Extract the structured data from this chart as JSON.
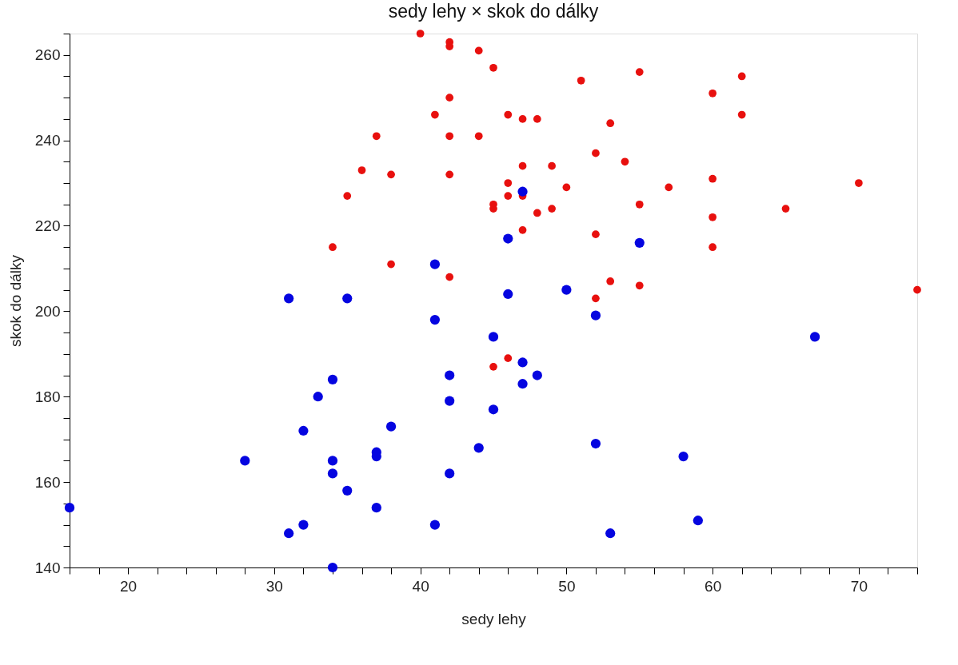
{
  "chart_data": {
    "type": "scatter",
    "title": "sedy lehy × skok do dálky",
    "xlabel": "sedy lehy",
    "ylabel": "skok do dálky",
    "xlim": [
      16,
      74
    ],
    "ylim": [
      140,
      265
    ],
    "xticks": [
      {
        "value": 16,
        "label": null
      },
      {
        "value": 18,
        "label": null
      },
      20,
      {
        "value": 22,
        "label": null
      },
      {
        "value": 24,
        "label": null
      },
      {
        "value": 26,
        "label": null
      },
      {
        "value": 28,
        "label": null
      },
      30,
      {
        "value": 32,
        "label": null
      },
      {
        "value": 34,
        "label": null
      },
      {
        "value": 36,
        "label": null
      },
      {
        "value": 38,
        "label": null
      },
      40,
      {
        "value": 42,
        "label": null
      },
      {
        "value": 44,
        "label": null
      },
      {
        "value": 46,
        "label": null
      },
      {
        "value": 48,
        "label": null
      },
      50,
      {
        "value": 52,
        "label": null
      },
      {
        "value": 54,
        "label": null
      },
      {
        "value": 56,
        "label": null
      },
      {
        "value": 58,
        "label": null
      },
      60,
      {
        "value": 62,
        "label": null
      },
      {
        "value": 64,
        "label": null
      },
      {
        "value": 66,
        "label": null
      },
      {
        "value": 68,
        "label": null
      },
      70,
      {
        "value": 72,
        "label": null
      },
      {
        "value": 74,
        "label": null
      }
    ],
    "yticks": [
      140,
      {
        "value": 145,
        "label": null
      },
      {
        "value": 150,
        "label": null
      },
      {
        "value": 155,
        "label": null
      },
      160,
      {
        "value": 165,
        "label": null
      },
      {
        "value": 170,
        "label": null
      },
      {
        "value": 175,
        "label": null
      },
      180,
      {
        "value": 185,
        "label": null
      },
      {
        "value": 190,
        "label": null
      },
      {
        "value": 195,
        "label": null
      },
      200,
      {
        "value": 205,
        "label": null
      },
      {
        "value": 210,
        "label": null
      },
      {
        "value": 215,
        "label": null
      },
      220,
      {
        "value": 225,
        "label": null
      },
      {
        "value": 230,
        "label": null
      },
      {
        "value": 235,
        "label": null
      },
      240,
      {
        "value": 245,
        "label": null
      },
      {
        "value": 250,
        "label": null
      },
      {
        "value": 255,
        "label": null
      },
      260,
      {
        "value": 265,
        "label": null
      }
    ],
    "grid": false,
    "legend": false,
    "marker": "circle",
    "series": [
      {
        "color": "#e8100e",
        "x": [
          40,
          42,
          42,
          44,
          45,
          55,
          51,
          62,
          60,
          42,
          41,
          46,
          47,
          48,
          62,
          53,
          37,
          42,
          44,
          52,
          54,
          47,
          49,
          36,
          38,
          42,
          46,
          60,
          70,
          50,
          57,
          47,
          46,
          35,
          45,
          45,
          48,
          49,
          55,
          65,
          60,
          47,
          52,
          34,
          60,
          38,
          42,
          53,
          55,
          74,
          52,
          46,
          45
        ],
        "values": [
          265,
          263,
          262,
          261,
          257,
          256,
          254,
          255,
          251,
          250,
          246,
          246,
          245,
          245,
          246,
          244,
          241,
          241,
          241,
          237,
          235,
          234,
          234,
          233,
          232,
          232,
          230,
          231,
          230,
          229,
          229,
          227,
          227,
          227,
          225,
          224,
          223,
          224,
          225,
          224,
          222,
          219,
          218,
          215,
          215,
          211,
          208,
          207,
          206,
          205,
          203,
          189,
          187
        ]
      },
      {
        "color": "#0505e0",
        "x": [
          16,
          28,
          31,
          31,
          32,
          32,
          33,
          34,
          34,
          34,
          34,
          35,
          35,
          37,
          37,
          37,
          38,
          41,
          41,
          41,
          42,
          42,
          42,
          44,
          45,
          45,
          46,
          46,
          47,
          47,
          47,
          48,
          50,
          52,
          52,
          53,
          55,
          58,
          59,
          67
        ],
        "values": [
          154,
          165,
          203,
          148,
          172,
          150,
          180,
          184,
          165,
          162,
          140,
          203,
          158,
          167,
          166,
          154,
          173,
          211,
          198,
          150,
          185,
          179,
          162,
          168,
          194,
          177,
          217,
          204,
          228,
          188,
          183,
          185,
          205,
          199,
          169,
          148,
          216,
          166,
          151,
          194
        ]
      }
    ]
  }
}
